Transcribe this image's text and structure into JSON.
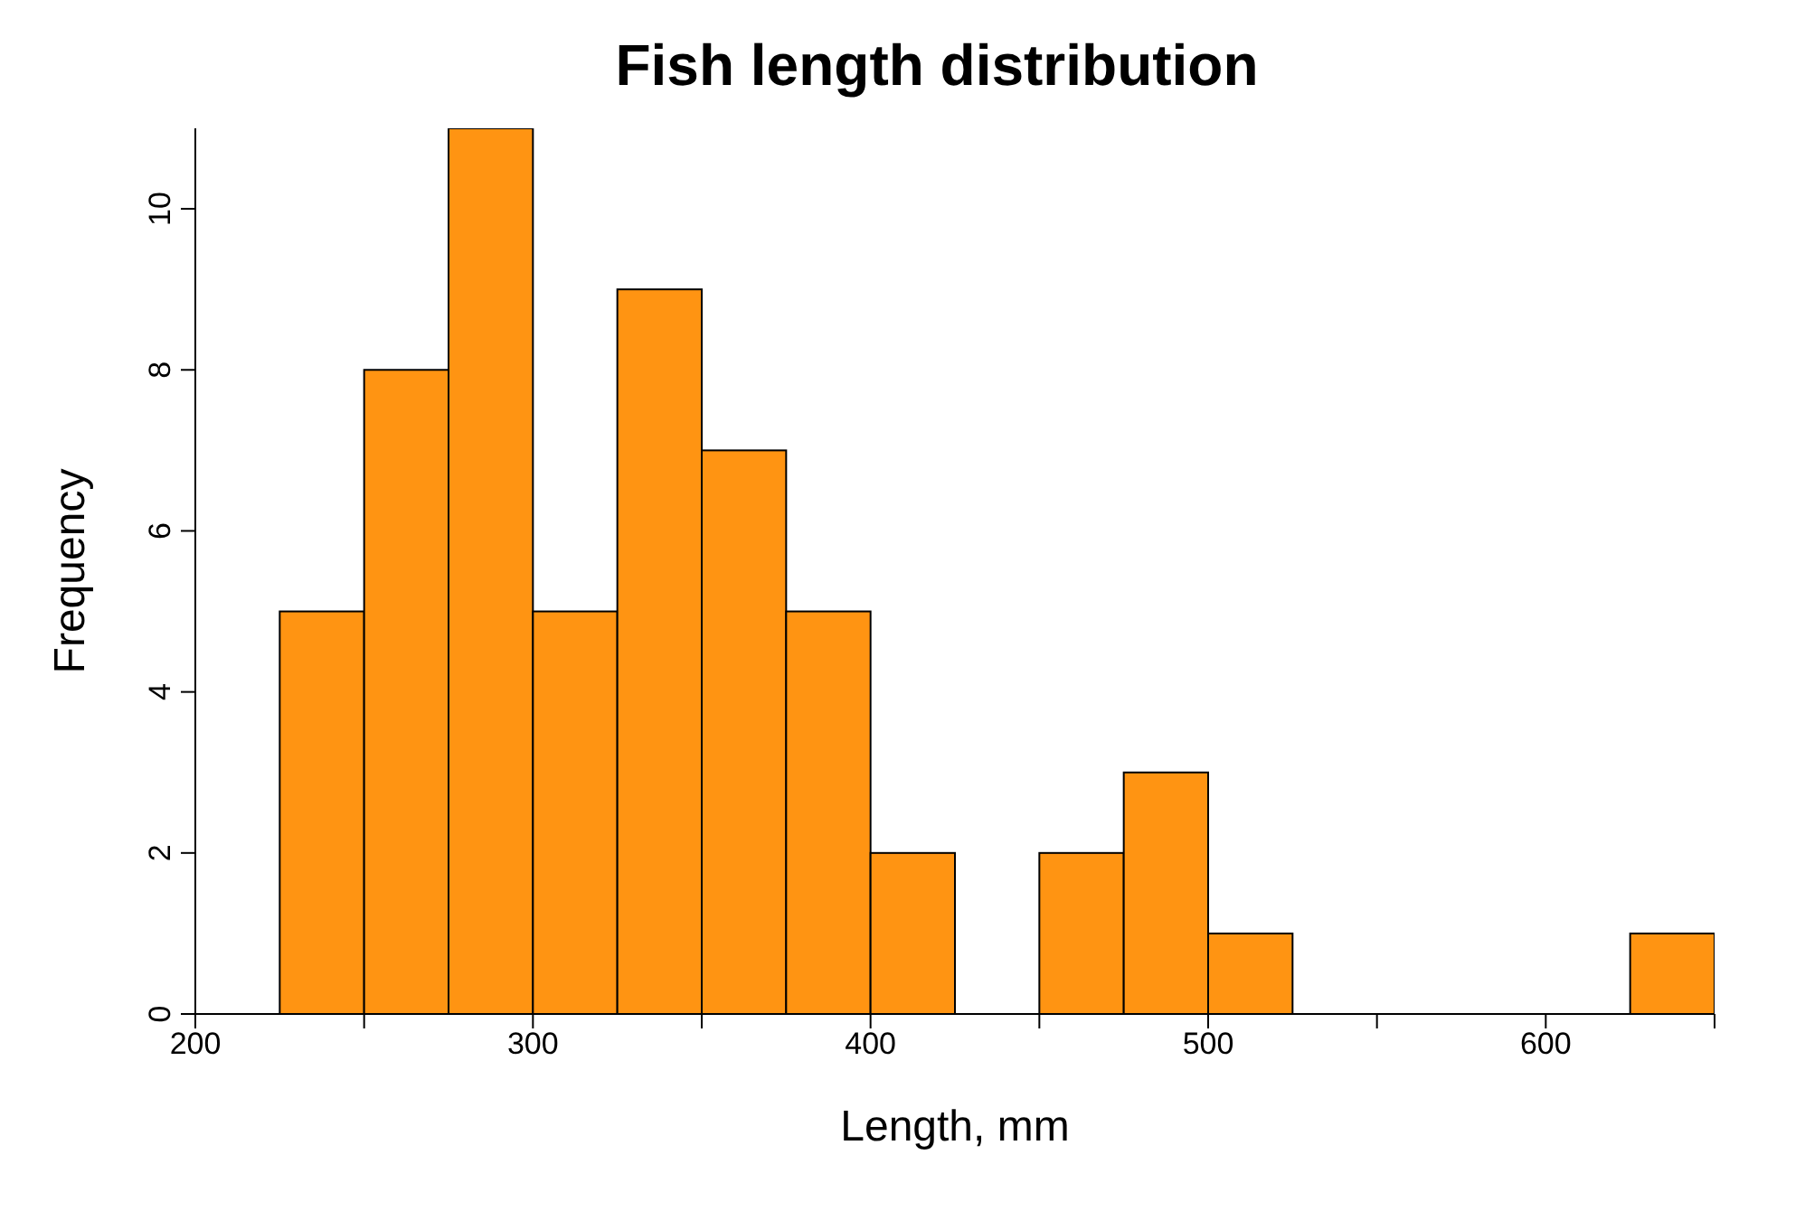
{
  "chart_data": {
    "type": "histogram",
    "title": "Fish length distribution",
    "xlabel": "Length, mm",
    "ylabel": "Frequency",
    "bins": [
      200,
      225,
      250,
      275,
      300,
      325,
      350,
      375,
      400,
      425,
      450,
      475,
      500,
      525,
      550,
      575,
      600,
      625,
      650
    ],
    "values": [
      0,
      5,
      8,
      11,
      5,
      9,
      7,
      5,
      2,
      0,
      2,
      3,
      1,
      0,
      0,
      0,
      0,
      1
    ],
    "color": "#ff9412",
    "xlim": [
      200,
      650
    ],
    "xticks": [
      200,
      {
        "value": 250,
        "label": null
      },
      300,
      {
        "value": 350,
        "label": null
      },
      400,
      {
        "value": 450,
        "label": null
      },
      500,
      {
        "value": 550,
        "label": null
      },
      600,
      {
        "value": 650,
        "label": null
      }
    ],
    "ylim": [
      0,
      11
    ],
    "yticks": [
      0,
      2,
      4,
      6,
      8,
      10
    ],
    "grid": false,
    "legend": false
  }
}
